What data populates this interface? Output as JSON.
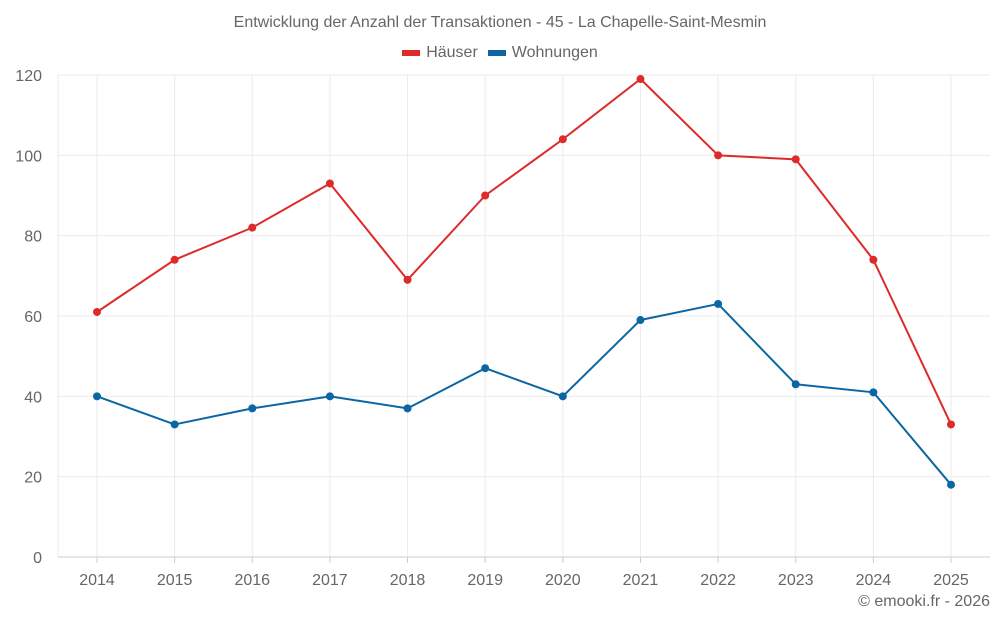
{
  "chart_data": {
    "type": "line",
    "title": "Entwicklung der Anzahl der Transaktionen - 45 - La Chapelle-Saint-Mesmin",
    "xlabel": "",
    "ylabel": "",
    "categories": [
      "2014",
      "2015",
      "2016",
      "2017",
      "2018",
      "2019",
      "2020",
      "2021",
      "2022",
      "2023",
      "2024",
      "2025"
    ],
    "ylim": [
      0,
      120
    ],
    "yticks": [
      0,
      20,
      40,
      60,
      80,
      100,
      120
    ],
    "grid": true,
    "legend_position": "top-center",
    "series": [
      {
        "name": "Häuser",
        "color": "#dd2a2a",
        "values": [
          61,
          74,
          82,
          93,
          69,
          90,
          104,
          119,
          100,
          99,
          74,
          33
        ]
      },
      {
        "name": "Wohnungen",
        "color": "#0a67a3",
        "values": [
          40,
          33,
          37,
          40,
          37,
          47,
          40,
          59,
          63,
          43,
          41,
          18
        ]
      }
    ]
  },
  "footer": {
    "copyright": "© emooki.fr - 2026"
  }
}
